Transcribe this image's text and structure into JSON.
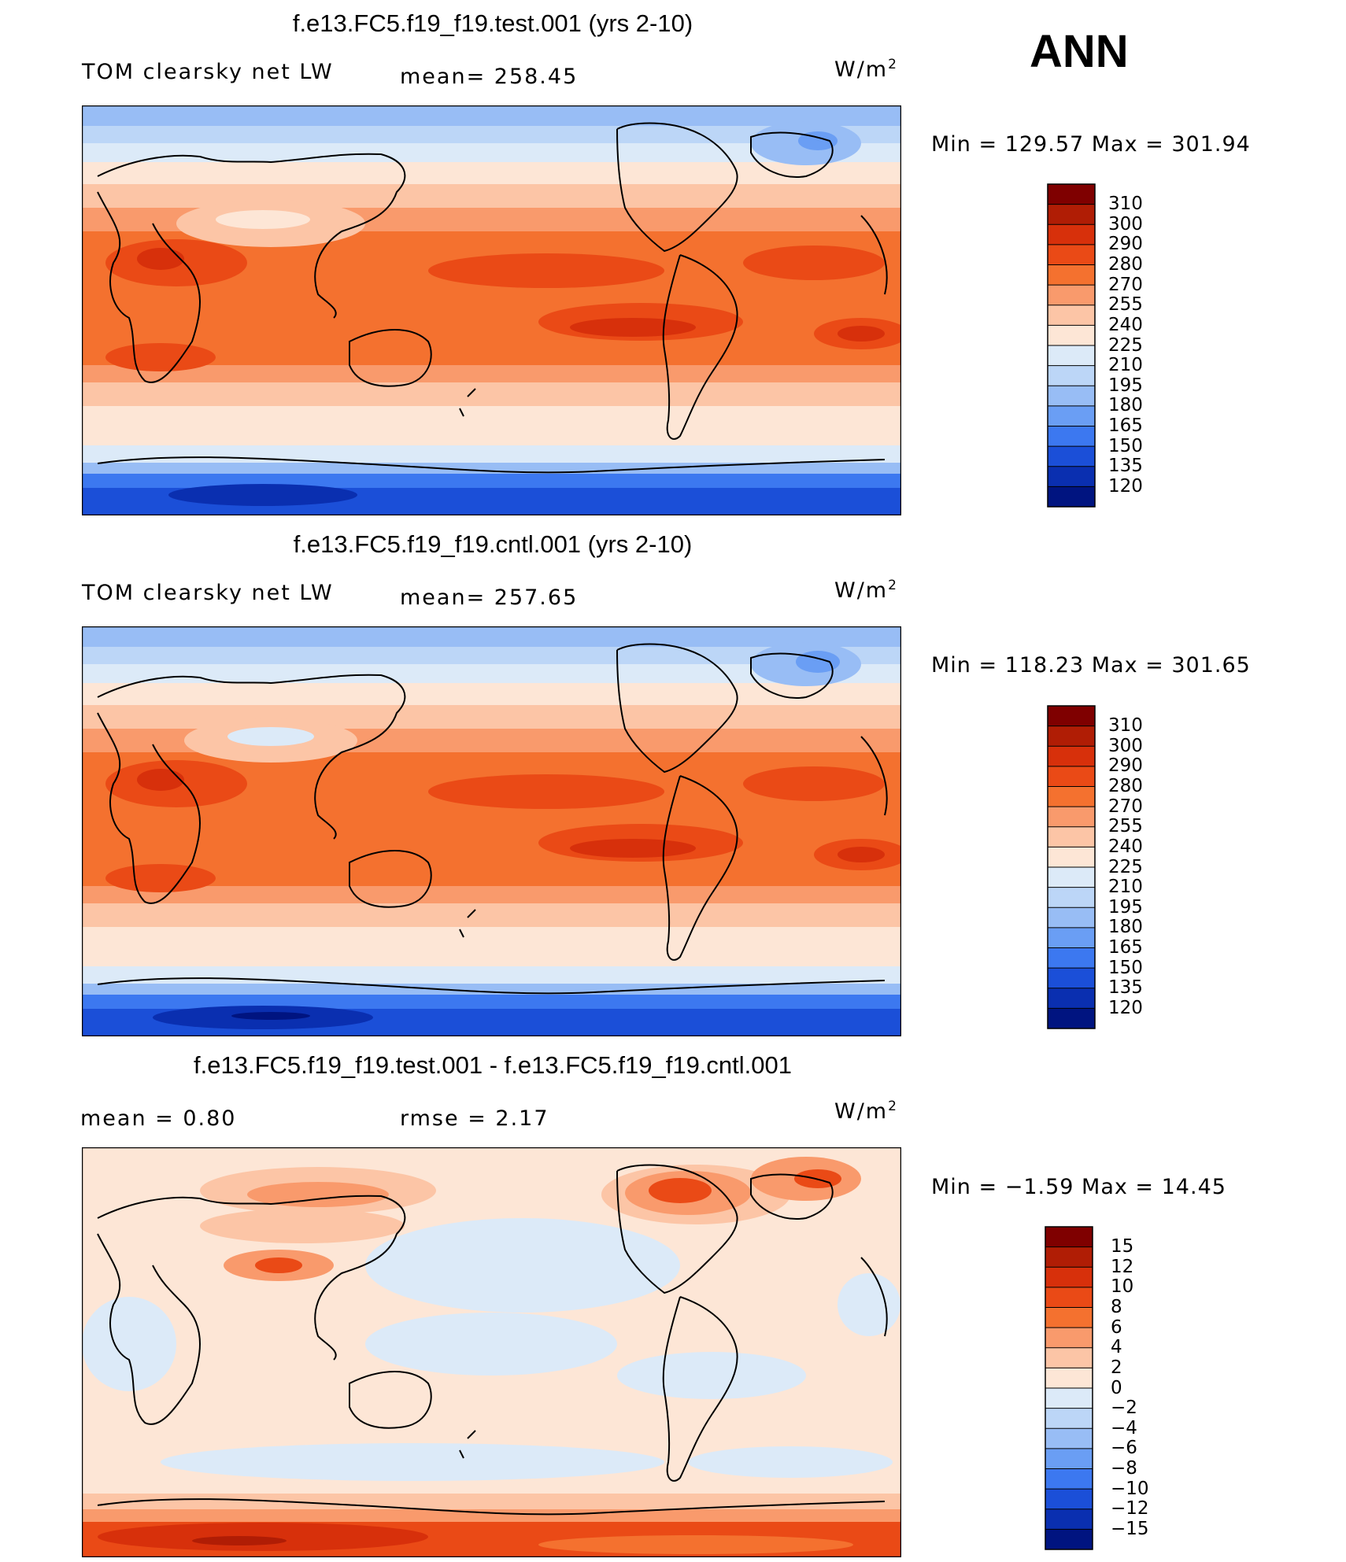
{
  "season": "ANN",
  "units_base": "W/m",
  "units_exp": "2",
  "panels": [
    {
      "title": "f.e13.FC5.f19_f19.test.001 (yrs 2-10)",
      "variable": "TOM clearsky net LW",
      "stat1": "mean=  258.45",
      "minmax": "Min  =  129.57  Max  =  301.94",
      "type": "test"
    },
    {
      "title": "f.e13.FC5.f19_f19.cntl.001 (yrs 2-10)",
      "variable": "TOM clearsky net LW",
      "stat1": "mean=  257.65",
      "minmax": "Min  =  118.23  Max  =  301.65",
      "type": "cntl"
    },
    {
      "title": "f.e13.FC5.f19_f19.test.001 - f.e13.FC5.f19_f19.cntl.001",
      "variable": "mean  =     0.80",
      "stat1": "rmse  =     2.17",
      "minmax": "Min  =    −1.59  Max  =    14.45",
      "type": "diff"
    }
  ],
  "colorbar_abs": {
    "levels": [
      "310",
      "300",
      "290",
      "280",
      "270",
      "255",
      "240",
      "225",
      "210",
      "195",
      "180",
      "165",
      "150",
      "135",
      "120"
    ],
    "colors": [
      "#7f0000",
      "#b01d05",
      "#d7300b",
      "#ea4a16",
      "#f4712f",
      "#f99a6c",
      "#fcc5a6",
      "#fde6d6",
      "#dceaf8",
      "#bcd6f7",
      "#98bdf5",
      "#6a9ef4",
      "#3c78f0",
      "#1b4fd8",
      "#0a2fb0",
      "#001480"
    ]
  },
  "colorbar_diff": {
    "levels": [
      "15",
      "12",
      "10",
      "8",
      "6",
      "4",
      "2",
      "0",
      "−2",
      "−4",
      "−6",
      "−8",
      "−10",
      "−12",
      "−15"
    ],
    "colors": [
      "#7f0000",
      "#b01d05",
      "#d7300b",
      "#ea4a16",
      "#f4712f",
      "#f99a6c",
      "#fcc5a6",
      "#fde6d6",
      "#dceaf8",
      "#bcd6f7",
      "#98bdf5",
      "#6a9ef4",
      "#3c78f0",
      "#1b4fd8",
      "#0a2fb0",
      "#001480"
    ]
  }
}
